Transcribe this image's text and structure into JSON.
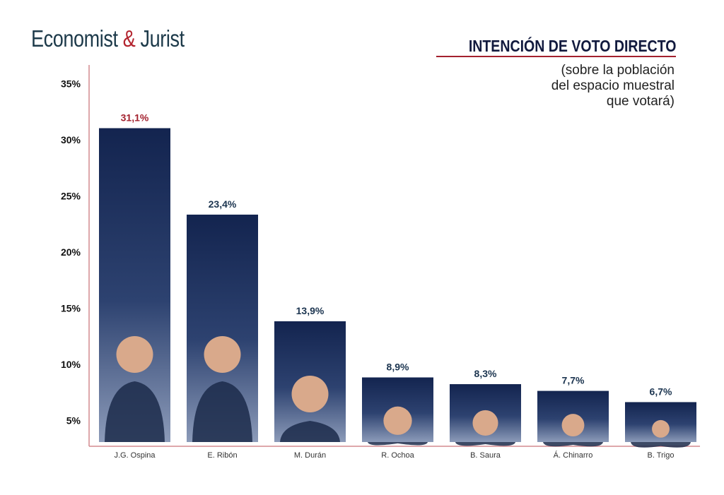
{
  "logo": {
    "part1": "Economist",
    "amp": "&",
    "part2": "Jurist"
  },
  "header": {
    "title": "INTENCIÓN DE VOTO DIRECTO",
    "subtitle_lines": [
      "(sobre la población",
      "del espacio muestral",
      "que votará)"
    ]
  },
  "colors": {
    "bar_top": "#13244f",
    "bar_bottom": "#8c9bb9",
    "highlight_label": "#a3212e",
    "label": "#1c3550",
    "axis": "#d48a8f"
  },
  "chart_data": {
    "type": "bar",
    "title": "INTENCIÓN DE VOTO DIRECTO",
    "categories": [
      "J.G. Ospina",
      "E. Ribón",
      "M. Durán",
      "R. Ochoa",
      "B. Saura",
      "Á. Chinarro",
      "B. Trigo"
    ],
    "values": [
      31.1,
      23.4,
      13.9,
      8.9,
      8.3,
      7.7,
      6.7
    ],
    "value_labels": [
      "31,1%",
      "23,4%",
      "13,9%",
      "8,9%",
      "8,3%",
      "7,7%",
      "6,7%"
    ],
    "yticks": [
      "5%",
      "10%",
      "15%",
      "20%",
      "25%",
      "30%",
      "35%"
    ],
    "ytick_values": [
      5,
      10,
      15,
      20,
      25,
      30,
      35
    ],
    "ylim": [
      0,
      35
    ],
    "xlabel": "",
    "ylabel": "",
    "grid": false
  }
}
